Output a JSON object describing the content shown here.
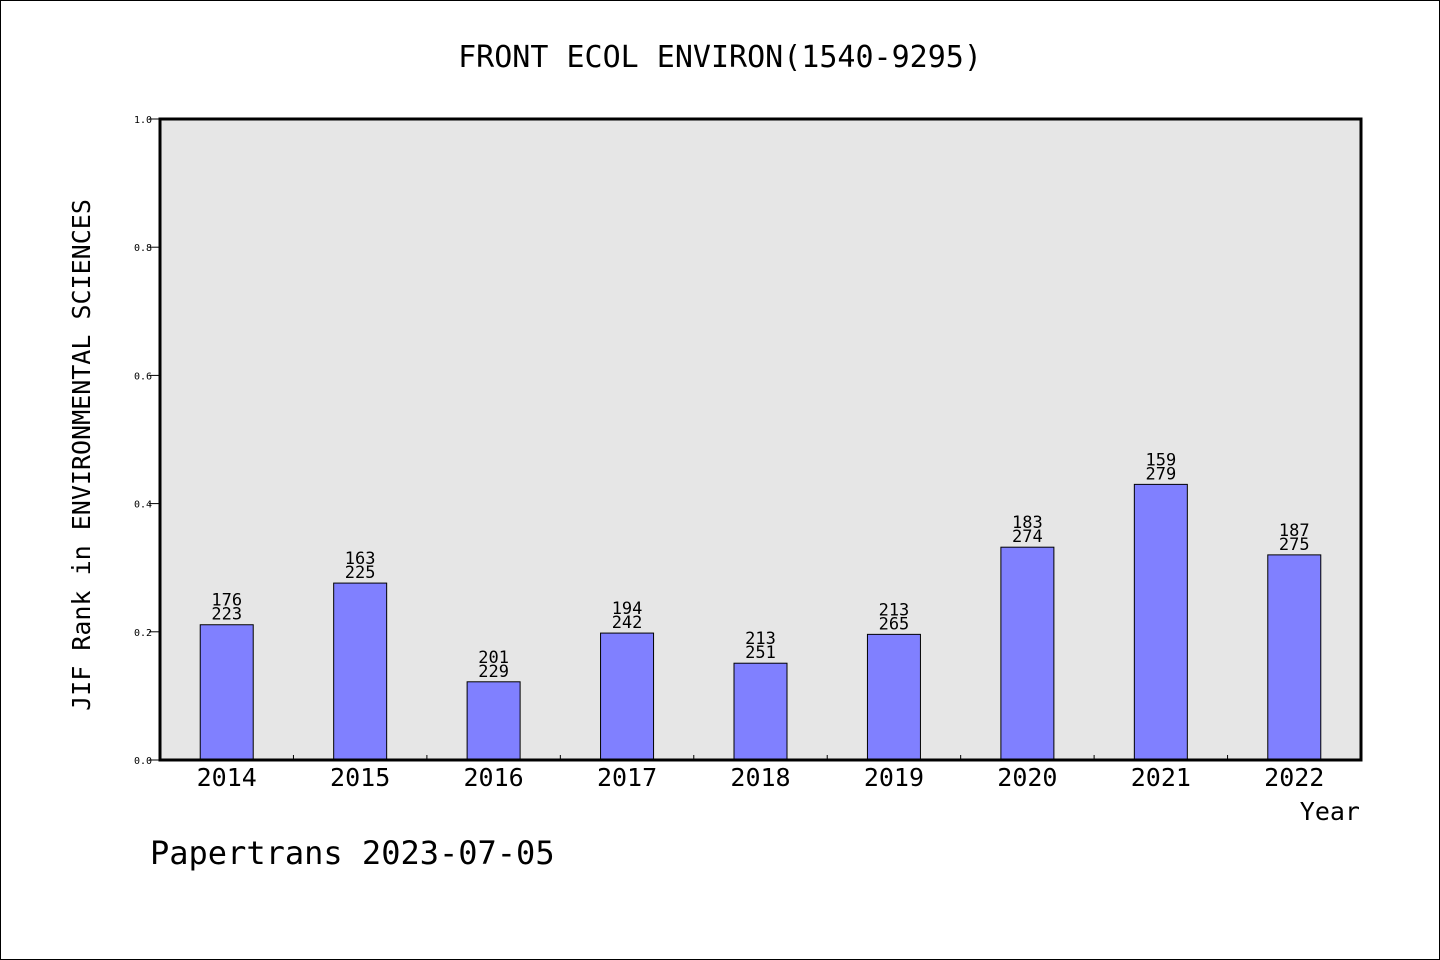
{
  "chart_data": {
    "type": "bar",
    "title": "FRONT ECOL ENVIRON(1540-9295)",
    "xlabel": "Year",
    "ylabel": "JIF Rank in ENVIRONMENTAL SCIENCES",
    "ylim": [
      0,
      1.0
    ],
    "yticks": [
      "0.0",
      "0.2",
      "0.4",
      "0.6",
      "0.8",
      "1.0"
    ],
    "categories": [
      "2014",
      "2015",
      "2016",
      "2017",
      "2018",
      "2019",
      "2020",
      "2021",
      "2022"
    ],
    "values": [
      0.211,
      0.276,
      0.122,
      0.198,
      0.151,
      0.196,
      0.332,
      0.43,
      0.32
    ],
    "rank": [
      "176",
      "163",
      "201",
      "194",
      "213",
      "213",
      "183",
      "159",
      "187"
    ],
    "total": [
      "223",
      "225",
      "229",
      "242",
      "251",
      "265",
      "274",
      "279",
      "275"
    ],
    "grid": false,
    "legend": "none"
  },
  "footer": "Papertrans 2023-07-05",
  "colors": {
    "bar": "#8080ff",
    "plot_background": "#e6e6e6",
    "axes": "#000000"
  }
}
